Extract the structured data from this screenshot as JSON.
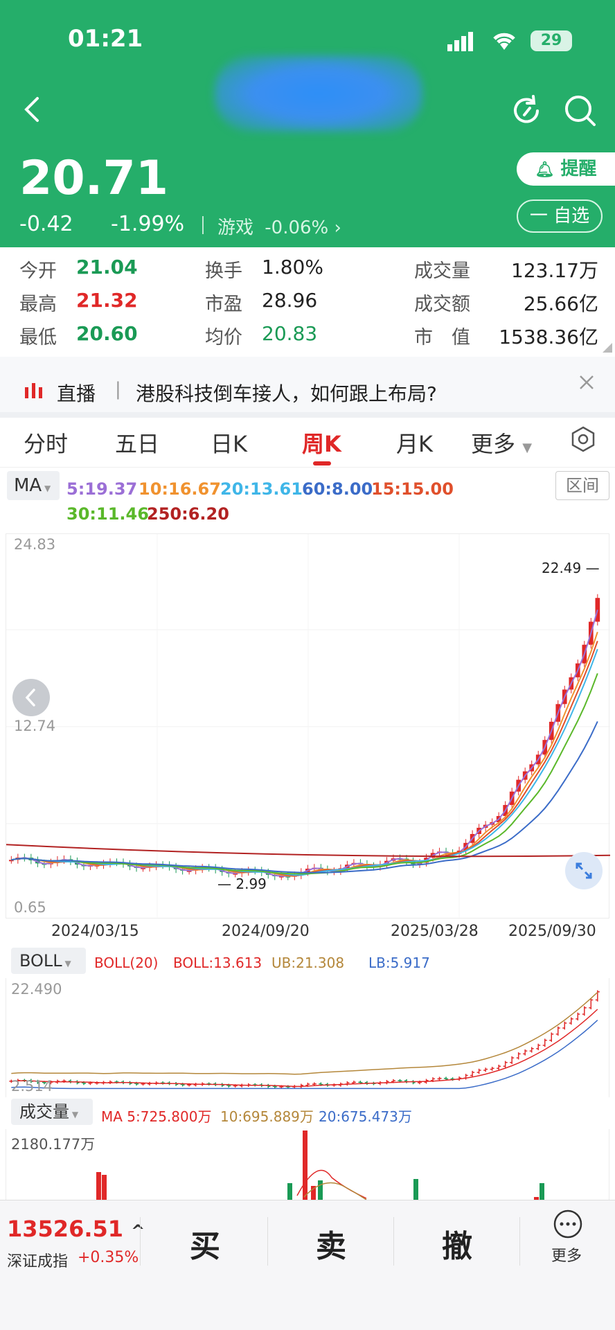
{
  "status_bar": {
    "time": "01:21",
    "battery": "29"
  },
  "header": {
    "price": "20.71",
    "change": "-0.42",
    "change_pct": "-1.99%",
    "sector_name": "游戏",
    "sector_pct": "-0.06%",
    "remind_label": "提醒",
    "watch_label": "一 自选"
  },
  "stats": {
    "open_label": "今开",
    "open": "21.04",
    "high_label": "最高",
    "high": "21.32",
    "low_label": "最低",
    "low": "20.60",
    "turnover_label": "换手",
    "turnover": "1.80%",
    "pe_label": "市盈",
    "pe": "28.96",
    "avg_label": "均价",
    "avg": "20.83",
    "volume_label": "成交量",
    "volume": "123.17万",
    "amount_label": "成交额",
    "amount": "25.66亿",
    "mcap_label": "市　值",
    "mcap": "1538.36亿"
  },
  "news": {
    "tag": "直播",
    "sep": "|",
    "text": "港股科技倒车接人，如何跟上布局?"
  },
  "tabs": [
    "分时",
    "五日",
    "日K",
    "周K",
    "月K",
    "更多"
  ],
  "active_tab": "周K",
  "ma_legend": {
    "selector": "MA",
    "ma5": "5:19.37",
    "ma10": "10:16.67",
    "ma20": "20:13.61",
    "ma60": "60:8.00",
    "ma15": "15:15.00",
    "ma30": "30:11.46",
    "ma250": "250:6.20",
    "range_button": "区间",
    "colors": {
      "ma5": "#9b6fd6",
      "ma10": "#f0922f",
      "ma20": "#3fb6e8",
      "ma60": "#3b6cc8",
      "ma15": "#e0502c",
      "ma30": "#5ab82a",
      "ma250": "#b22222"
    }
  },
  "kchart": {
    "y_top": "24.83",
    "y_mid": "12.74",
    "y_bottom": "0.65",
    "max_label": "22.49",
    "min_label": "2.99",
    "dates": [
      "2024/03/15",
      "2024/09/20",
      "2025/03/28",
      "2025/09/30"
    ]
  },
  "boll": {
    "selector": "BOLL",
    "param": "BOLL(20)",
    "mid": "BOLL:13.613",
    "ub": "UB:21.308",
    "lb": "LB:5.917",
    "y_top": "22.490",
    "y_bottom": "2.514"
  },
  "volume": {
    "selector": "成交量",
    "ma5": "MA 5:725.800万",
    "ma10": "10:695.889万",
    "ma20": "20:675.473万",
    "y_top": "2180.177万"
  },
  "bottom_bar": {
    "index_value": "13526.51",
    "index_name": "深证成指",
    "index_pct": "+0.35%",
    "buy": "买",
    "sell": "卖",
    "cancel": "撤",
    "more": "更多"
  }
}
